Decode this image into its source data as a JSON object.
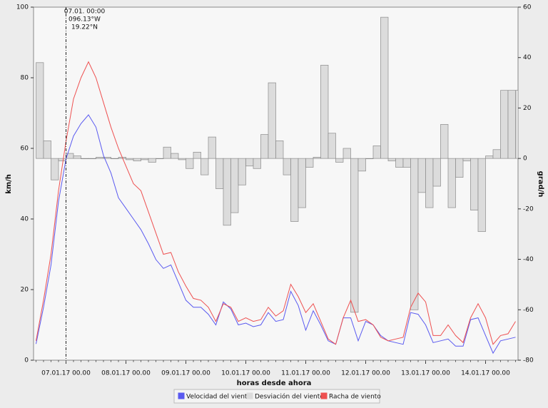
{
  "chart_data": {
    "type": "line",
    "xlabel": "horas desde ahora",
    "ylabel": "km/h",
    "y2label": "grad/h",
    "annotation": [
      "07.01. 00:00",
      "096.13°W",
      "19.22°N"
    ],
    "annotation_x": 12,
    "x": [
      0,
      3,
      6,
      9,
      12,
      15,
      18,
      21,
      24,
      27,
      30,
      33,
      36,
      39,
      42,
      45,
      48,
      51,
      54,
      57,
      60,
      63,
      66,
      69,
      72,
      75,
      78,
      81,
      84,
      87,
      90,
      93,
      96,
      99,
      102,
      105,
      108,
      111,
      114,
      117,
      120,
      123,
      126,
      129,
      132,
      135,
      138,
      141,
      144,
      147,
      150,
      153,
      156,
      159,
      162,
      165,
      168,
      171,
      174,
      177,
      180,
      183,
      186,
      189,
      192
    ],
    "xlim": [
      -1,
      193
    ],
    "xticks": [
      {
        "value": 12,
        "label": "07.01.17 00.00"
      },
      {
        "value": 36,
        "label": "08.01.17 00.00"
      },
      {
        "value": 60,
        "label": "09.01.17 00.00"
      },
      {
        "value": 84,
        "label": "10.01.17 00.00"
      },
      {
        "value": 108,
        "label": "11.01.17 00.00"
      },
      {
        "value": 132,
        "label": "12.01.17 00.00"
      },
      {
        "value": 156,
        "label": "13.01.17 00.00"
      },
      {
        "value": 180,
        "label": "14.01.17 00.00"
      }
    ],
    "ylim": [
      0,
      100
    ],
    "yticks": [
      0,
      20,
      40,
      60,
      80,
      100
    ],
    "y2lim": [
      -80,
      60
    ],
    "y2ticks": [
      -80,
      -60,
      -40,
      -20,
      0,
      20,
      40,
      60
    ],
    "series": [
      {
        "name": "Velocidad del viento",
        "color": "#5a5af0",
        "style": "line",
        "values": [
          4.6,
          15,
          27,
          45,
          57,
          63.5,
          67,
          69.5,
          66,
          58,
          53,
          46,
          43,
          40,
          37,
          33,
          28.5,
          26,
          27,
          22,
          17,
          15,
          15,
          13,
          10,
          16.5,
          14.5,
          10,
          10.5,
          9.5,
          10,
          13.5,
          11,
          11.5,
          19.5,
          15.5,
          8.5,
          14,
          10,
          5.5,
          4.5,
          12,
          12,
          5.5,
          11,
          10,
          7,
          5.5,
          5,
          4.5,
          13.5,
          13,
          10,
          5,
          5.5,
          6,
          4,
          4,
          11.5,
          12,
          7,
          2,
          5.5,
          6,
          6.5
        ]
      },
      {
        "name": "Desviación del viento",
        "color": "#dcdcdc",
        "style": "step",
        "axis": "y2",
        "values": [
          38,
          7,
          -8.5,
          -1,
          2,
          1,
          0,
          0,
          0.5,
          0.5,
          0,
          0.5,
          -0.5,
          -1,
          -0.5,
          -1.5,
          0,
          4.5,
          2,
          -0.5,
          -4,
          2.5,
          -6.5,
          8.5,
          -12,
          -26.5,
          -21.5,
          -10.5,
          -3,
          -4,
          9.5,
          30,
          7,
          -6.5,
          -25,
          -19.5,
          -3.5,
          0.5,
          37,
          10,
          -1.5,
          4,
          -61,
          -5,
          0,
          5,
          56,
          -1,
          -3.5,
          -3.5,
          -60,
          -13.5,
          -19.5,
          -11,
          13.5,
          -19.5,
          -7.5,
          -1,
          -20.5,
          -29,
          1,
          3.5,
          27,
          27,
          27
        ]
      },
      {
        "name": "Racha de viento",
        "color": "#ee5050",
        "style": "line",
        "values": [
          5.5,
          17,
          30,
          48,
          62,
          74,
          80,
          84.5,
          80,
          73,
          66,
          60,
          55,
          50,
          48,
          42,
          36,
          30,
          30.5,
          25,
          21,
          17.5,
          17,
          15,
          11,
          16,
          15,
          11,
          12,
          11,
          11.5,
          15,
          12.5,
          14,
          21.5,
          18,
          13.5,
          16,
          11,
          6,
          4.5,
          12,
          17,
          11,
          11.5,
          10,
          6.5,
          5.5,
          6,
          6.5,
          15,
          19,
          16.5,
          7,
          7,
          10,
          7,
          5,
          12,
          16,
          12,
          4.5,
          7,
          7.5,
          11
        ]
      }
    ]
  }
}
